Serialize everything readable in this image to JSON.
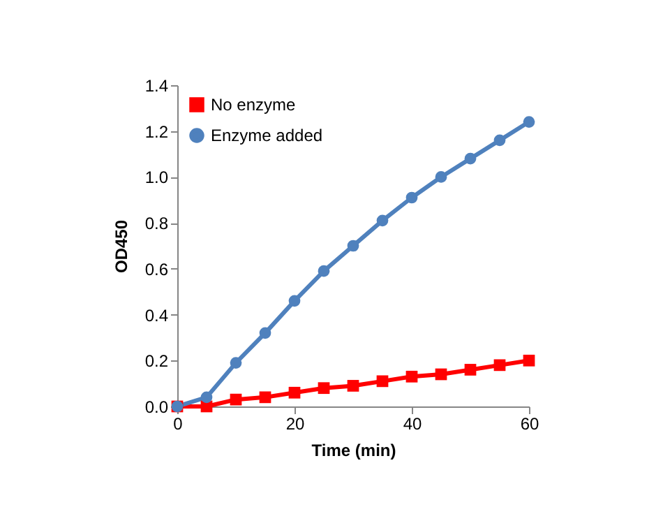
{
  "chart_data": {
    "type": "line",
    "xlabel": "Time (min)",
    "ylabel": "OD450",
    "x": [
      0,
      5,
      10,
      15,
      20,
      25,
      30,
      35,
      40,
      45,
      50,
      55,
      60
    ],
    "series": [
      {
        "name": "No enzyme",
        "color": "#ff0000",
        "marker": "square",
        "values": [
          0.0,
          0.0,
          0.03,
          0.04,
          0.06,
          0.08,
          0.09,
          0.11,
          0.13,
          0.14,
          0.16,
          0.18,
          0.2
        ]
      },
      {
        "name": "Enzyme added",
        "color": "#4f81bd",
        "marker": "circle",
        "values": [
          0.0,
          0.04,
          0.19,
          0.32,
          0.46,
          0.59,
          0.7,
          0.81,
          0.91,
          1.0,
          1.08,
          1.16,
          1.24
        ]
      }
    ],
    "xlim": [
      0,
      60
    ],
    "xticks": [
      0,
      20,
      40,
      60
    ],
    "ylim": [
      0,
      1.4
    ],
    "yticks": [
      {
        "value": 0,
        "label": "0.0"
      },
      0.2,
      0.4,
      0.6,
      0.8,
      {
        "value": 1,
        "label": "1.0"
      },
      1.2,
      1.4
    ],
    "grid": false,
    "legend": "top left",
    "line_style": "solid"
  }
}
